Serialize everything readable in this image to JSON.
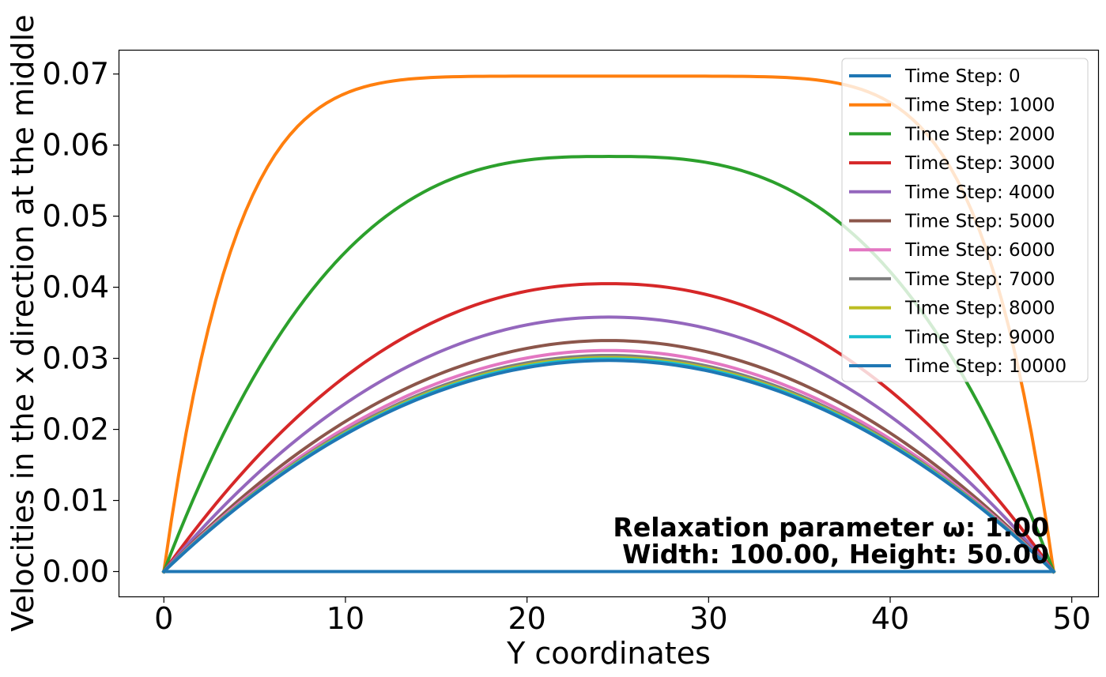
{
  "chart_data": {
    "type": "line",
    "title": "",
    "xlabel": "Y coordinates",
    "ylabel": "Velocities in the x direction at the middle",
    "xlim": [
      -2.45,
      51.45
    ],
    "ylim": [
      -0.0035,
      0.0733
    ],
    "x_ticks": [
      "0",
      "10",
      "20",
      "30",
      "40",
      "50"
    ],
    "x_tick_values": [
      0,
      10,
      20,
      30,
      40,
      50
    ],
    "y_ticks": [
      "0.00",
      "0.01",
      "0.02",
      "0.03",
      "0.04",
      "0.05",
      "0.06",
      "0.07"
    ],
    "y_tick_values": [
      0,
      0.01,
      0.02,
      0.03,
      0.04,
      0.05,
      0.06,
      0.07
    ],
    "grid": false,
    "legend_position": "top-right",
    "x_points": [
      0,
      49
    ],
    "annotation": [
      "Relaxation parameter ω: 1.00",
      "Width: 100.00, Height: 50.00"
    ],
    "series": [
      {
        "name": "Time Step: 0",
        "color": "#1f77b4",
        "peak": 0.0,
        "flatness": 1
      },
      {
        "name": "Time Step: 1000",
        "color": "#ff7f0e",
        "peak": 0.0697,
        "flatness": 3.2
      },
      {
        "name": "Time Step: 2000",
        "color": "#2ca02c",
        "peak": 0.0584,
        "flatness": 1.4
      },
      {
        "name": "Time Step: 3000",
        "color": "#d62728",
        "peak": 0.0405,
        "flatness": 1.08
      },
      {
        "name": "Time Step: 4000",
        "color": "#9467bd",
        "peak": 0.0358,
        "flatness": 1.03
      },
      {
        "name": "Time Step: 5000",
        "color": "#8c564b",
        "peak": 0.0325,
        "flatness": 1.0
      },
      {
        "name": "Time Step: 6000",
        "color": "#e377c2",
        "peak": 0.0311,
        "flatness": 1.0
      },
      {
        "name": "Time Step: 7000",
        "color": "#7f7f7f",
        "peak": 0.0304,
        "flatness": 1.0
      },
      {
        "name": "Time Step: 8000",
        "color": "#bcbd22",
        "peak": 0.0301,
        "flatness": 1.0
      },
      {
        "name": "Time Step: 9000",
        "color": "#17becf",
        "peak": 0.0299,
        "flatness": 1.0
      },
      {
        "name": "Time Step: 10000",
        "color": "#1f77b4",
        "peak": 0.0297,
        "flatness": 1.0
      }
    ]
  }
}
